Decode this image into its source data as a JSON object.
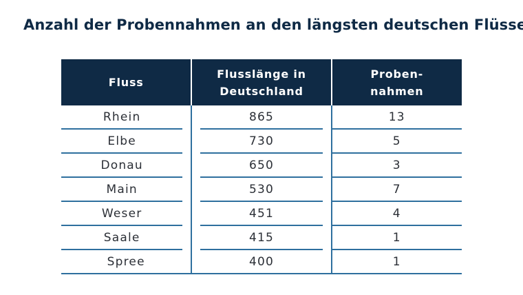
{
  "title": "Anzahl der Probennahmen an den längsten deutschen Flüssen",
  "table": {
    "headers": [
      "Fluss",
      "Flusslänge in\nDeutschland",
      "Proben-\nnahmen"
    ],
    "rows": [
      [
        "Rhein",
        "865",
        "13"
      ],
      [
        "Elbe",
        "730",
        "5"
      ],
      [
        "Donau",
        "650",
        "3"
      ],
      [
        "Main",
        "530",
        "7"
      ],
      [
        "Weser",
        "451",
        "4"
      ],
      [
        "Saale",
        "415",
        "1"
      ],
      [
        "Spree",
        "400",
        "1"
      ]
    ]
  },
  "colors": {
    "header_bg": "#0f2a45",
    "rule": "#2e6f9e"
  }
}
